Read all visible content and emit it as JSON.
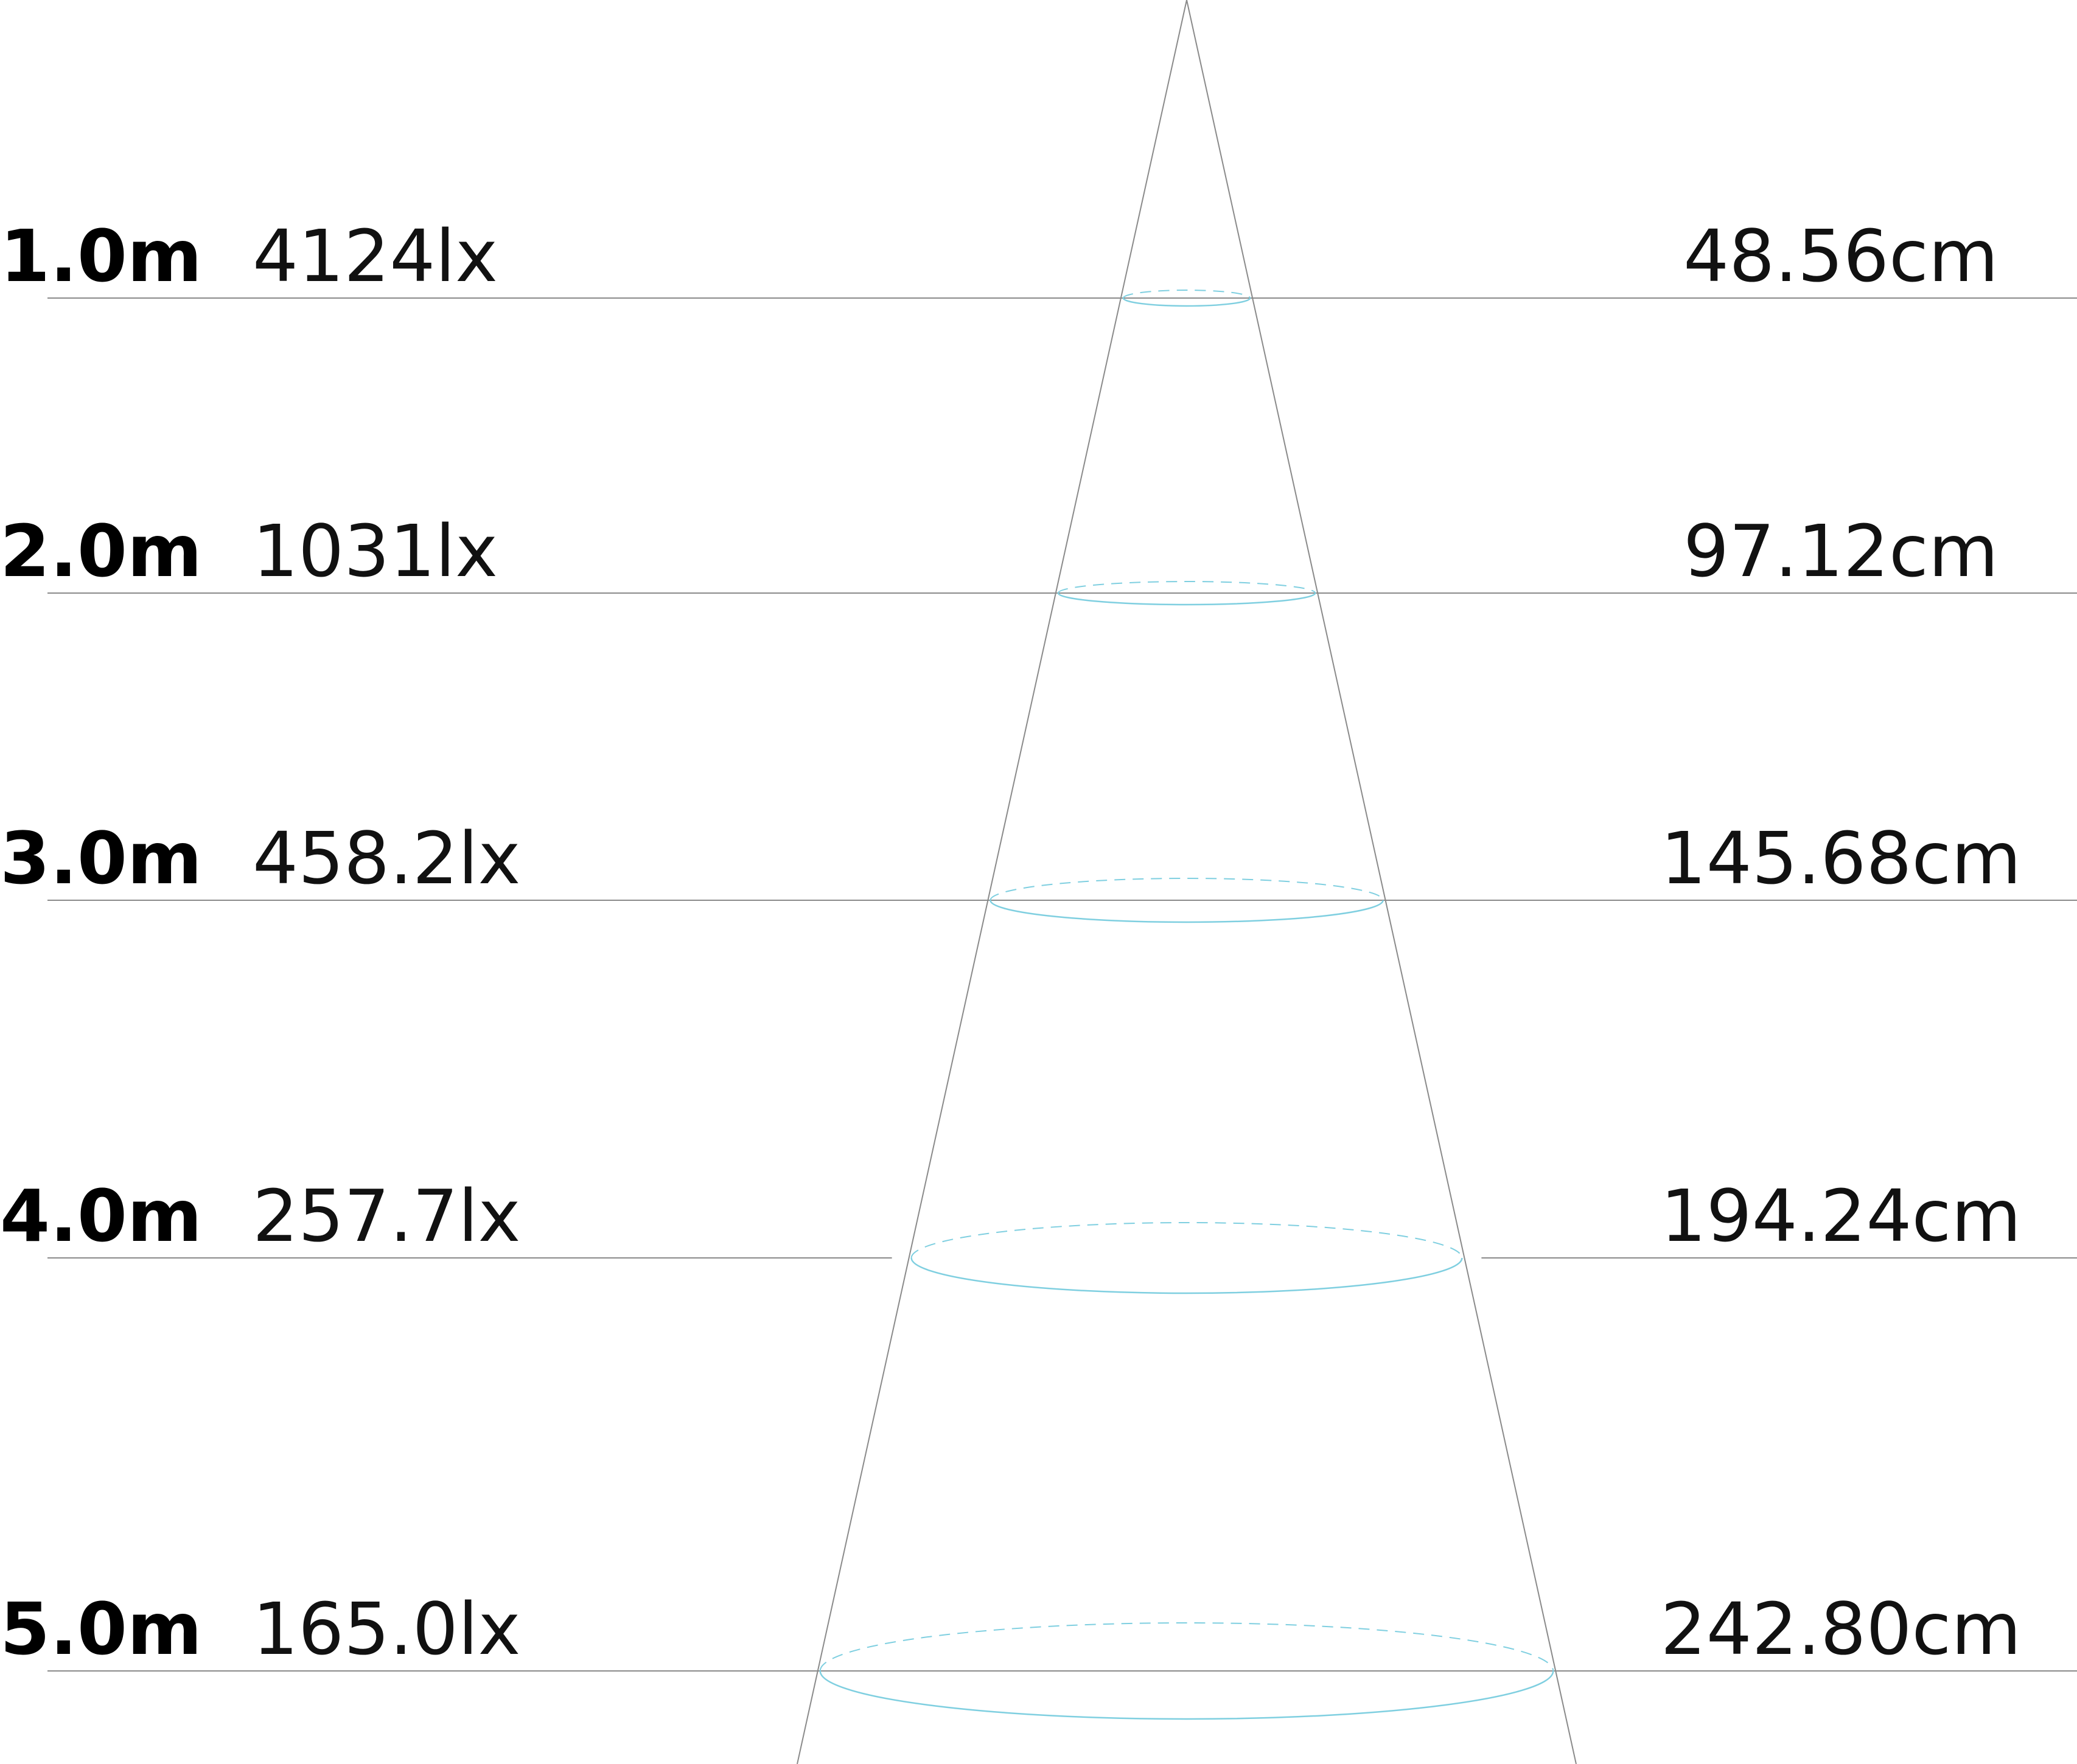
{
  "diagram": {
    "levels": [
      {
        "distance": "1.0m",
        "illuminance": "4124lx",
        "diameter": "48.56cm"
      },
      {
        "distance": "2.0m",
        "illuminance": "1031lx",
        "diameter": "97.12cm"
      },
      {
        "distance": "3.0m",
        "illuminance": "458.2lx",
        "diameter": "145.68cm"
      },
      {
        "distance": "4.0m",
        "illuminance": "257.7lx",
        "diameter": "194.24cm"
      },
      {
        "distance": "5.0m",
        "illuminance": "165.0lx",
        "diameter": "242.80cm"
      }
    ],
    "colors": {
      "beam_ellipse": "#7fcfe0",
      "lines": "#8a8a8a",
      "text": "#111111"
    }
  }
}
